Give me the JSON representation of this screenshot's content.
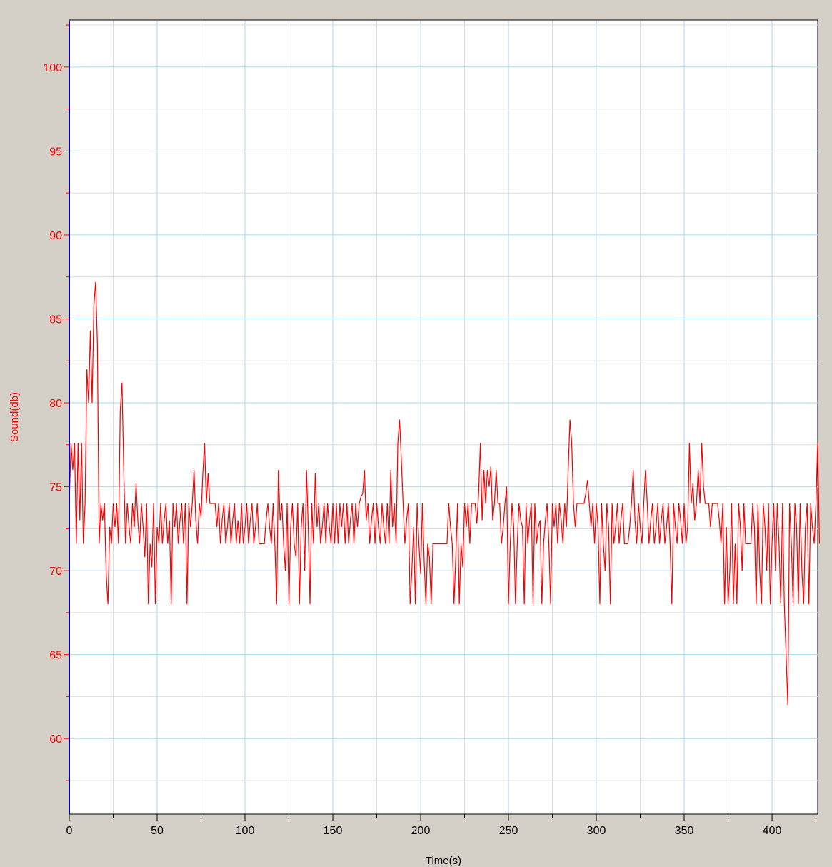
{
  "chart_data": {
    "type": "line",
    "title": "",
    "xlabel": "Time(s)",
    "ylabel": "Sound(db)",
    "xlim": [
      0,
      426
    ],
    "ylim": [
      55.5,
      102.8
    ],
    "x_ticks": [
      0,
      50,
      100,
      150,
      200,
      250,
      300,
      350,
      400
    ],
    "y_ticks": [
      60,
      65,
      70,
      75,
      80,
      85,
      90,
      95,
      100
    ],
    "grid": true,
    "sample_interval_s": 1,
    "series": [
      {
        "values": [
          74,
          77.6,
          76,
          77.6,
          71.6,
          77.6,
          73,
          77.6,
          71.6,
          74,
          82,
          80,
          84.3,
          80,
          85.8,
          87.2,
          83.5,
          71.6,
          74,
          73,
          74,
          69.8,
          68,
          72.6,
          71.6,
          74,
          72.6,
          74,
          71.6,
          79.5,
          81.2,
          76,
          71.6,
          74,
          72.6,
          71.6,
          74,
          72.6,
          75.2,
          73,
          71.6,
          74,
          72.6,
          70.8,
          74,
          68,
          71.6,
          70.2,
          74,
          68,
          72.6,
          71.6,
          74,
          71.6,
          73,
          74,
          71.6,
          73,
          68,
          74,
          72.6,
          74,
          71.6,
          73,
          74,
          71.6,
          74,
          68,
          74,
          72.6,
          74,
          76,
          73,
          71.6,
          74,
          73.2,
          75.8,
          77.6,
          74,
          75.8,
          74,
          74,
          74,
          74,
          72.6,
          74,
          71.6,
          73,
          74,
          71.6,
          72.6,
          74,
          71.6,
          73,
          74,
          71.6,
          73,
          71.6,
          74,
          71.6,
          72.6,
          74,
          71.6,
          73,
          74,
          71.6,
          72.6,
          74,
          71.6,
          71.6,
          71.6,
          71.6,
          73,
          74,
          72.6,
          71.6,
          74,
          71.6,
          68,
          76,
          73,
          74,
          71.6,
          70,
          74,
          68,
          72.6,
          74,
          71.6,
          70.8,
          74,
          68,
          72.6,
          74,
          70,
          76,
          72.6,
          68,
          74,
          71.6,
          75.8,
          72.6,
          74,
          71.6,
          72.6,
          74,
          71.6,
          74,
          72.6,
          71.6,
          74,
          71.6,
          74,
          71.6,
          74,
          72.6,
          74,
          71.6,
          74,
          71.6,
          73,
          74,
          71.6,
          74,
          72.6,
          74,
          74.4,
          74.6,
          76,
          73,
          74,
          71.6,
          73,
          74,
          71.6,
          74,
          72.6,
          71.6,
          74,
          72.6,
          71.6,
          74,
          71.6,
          76,
          72.6,
          74,
          71.6,
          77.6,
          79,
          76.6,
          74,
          71.6,
          73,
          74,
          68,
          70,
          72.6,
          68,
          74,
          71.6,
          69.8,
          74,
          70.6,
          68,
          71.6,
          70.8,
          68,
          71.6,
          71.6,
          71.6,
          71.6,
          71.6,
          71.6,
          71.6,
          71.6,
          71.6,
          74,
          72.6,
          71.6,
          68,
          70.8,
          74,
          68,
          71.6,
          70.2,
          74,
          72.6,
          74,
          71.6,
          74,
          74,
          74,
          72.8,
          74.6,
          77.6,
          73,
          76,
          74,
          76,
          75,
          76.2,
          73,
          74,
          76,
          74,
          74,
          71.6,
          72.6,
          74,
          75,
          68,
          71.6,
          74,
          72.6,
          68,
          71.6,
          74,
          73,
          72.6,
          68,
          74,
          71.6,
          73,
          74,
          68,
          74,
          71.6,
          72.6,
          73,
          68,
          71.6,
          73,
          74,
          71.6,
          68,
          74,
          72.6,
          74,
          71.6,
          74,
          73,
          71.6,
          74,
          72.6,
          76,
          79,
          77.6,
          74,
          72.6,
          74,
          74,
          74,
          74,
          74,
          74.6,
          75.4,
          74,
          72.6,
          74,
          71.6,
          74,
          72.6,
          68,
          74,
          71.6,
          70,
          74,
          72.6,
          68,
          74,
          71.6,
          72.6,
          74,
          71.6,
          73,
          74,
          71.6,
          71.6,
          71.6,
          72.6,
          74,
          76,
          73,
          71.6,
          74,
          72.6,
          71.6,
          74,
          76,
          74,
          71.6,
          73,
          74,
          71.6,
          72.6,
          74,
          71.6,
          73,
          74,
          71.6,
          72.6,
          74,
          71.6,
          68,
          74,
          72.6,
          71.6,
          74,
          73,
          71.6,
          74,
          71.6,
          72.6,
          77.6,
          74,
          75.2,
          73,
          74,
          76,
          74,
          77.6,
          75,
          74,
          74,
          74,
          72.6,
          74,
          74,
          74,
          74,
          73,
          71.6,
          74,
          68,
          72.6,
          68,
          70,
          74,
          68,
          71.6,
          68,
          74,
          72.6,
          70,
          74,
          71.6,
          71.6,
          71.6,
          71.6,
          74,
          72.6,
          68,
          74,
          70,
          68,
          74,
          72.6,
          70,
          74,
          68,
          71.6,
          74,
          70,
          74,
          71.6,
          68,
          74,
          68,
          65,
          62,
          74,
          71.6,
          68,
          74,
          72.6,
          68,
          74,
          70,
          68,
          72.6,
          74,
          68,
          74,
          72.6,
          71.6,
          74,
          77.6,
          71.6
        ]
      }
    ]
  }
}
